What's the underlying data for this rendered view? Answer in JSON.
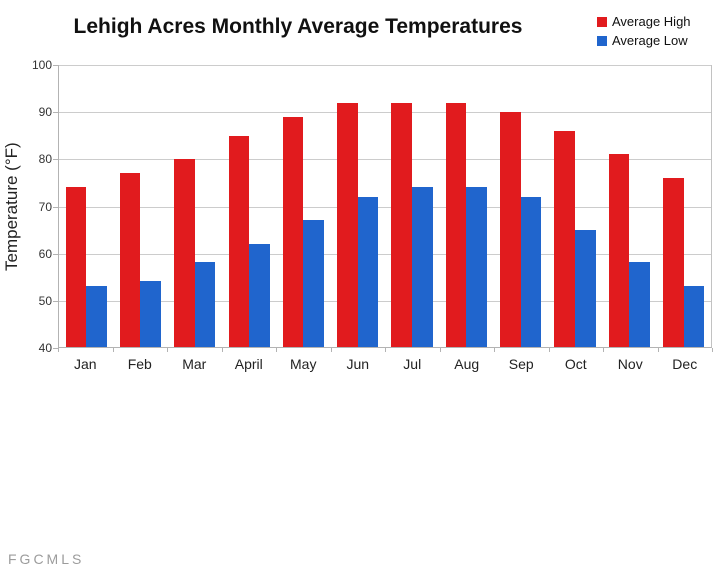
{
  "chart": {
    "title": "Lehigh Acres Monthly Average Temperatures",
    "ylabel": "Temperature (°F)"
  },
  "watermark": {
    "text": "FGCMLS"
  },
  "chart_data": {
    "type": "bar",
    "title": "Lehigh Acres Monthly Average Temperatures",
    "xlabel": "",
    "ylabel": "Temperature (°F)",
    "categories": [
      "Jan",
      "Feb",
      "Mar",
      "April",
      "May",
      "Jun",
      "Jul",
      "Aug",
      "Sep",
      "Oct",
      "Nov",
      "Dec"
    ],
    "series": [
      {
        "name": "Average High",
        "color": "#e11b1e",
        "values": [
          74,
          77,
          80,
          85,
          89,
          92,
          92,
          92,
          90,
          86,
          81,
          76
        ]
      },
      {
        "name": "Average Low",
        "color": "#2065cd",
        "values": [
          53,
          54,
          58,
          62,
          67,
          72,
          74,
          74,
          72,
          65,
          58,
          53
        ]
      }
    ],
    "ylim": [
      40,
      100
    ],
    "ytick_step": 10,
    "grid": true,
    "legend_position": "top-right",
    "gridline_color": "#cccccc",
    "axis_color": "#b3b3b3"
  }
}
